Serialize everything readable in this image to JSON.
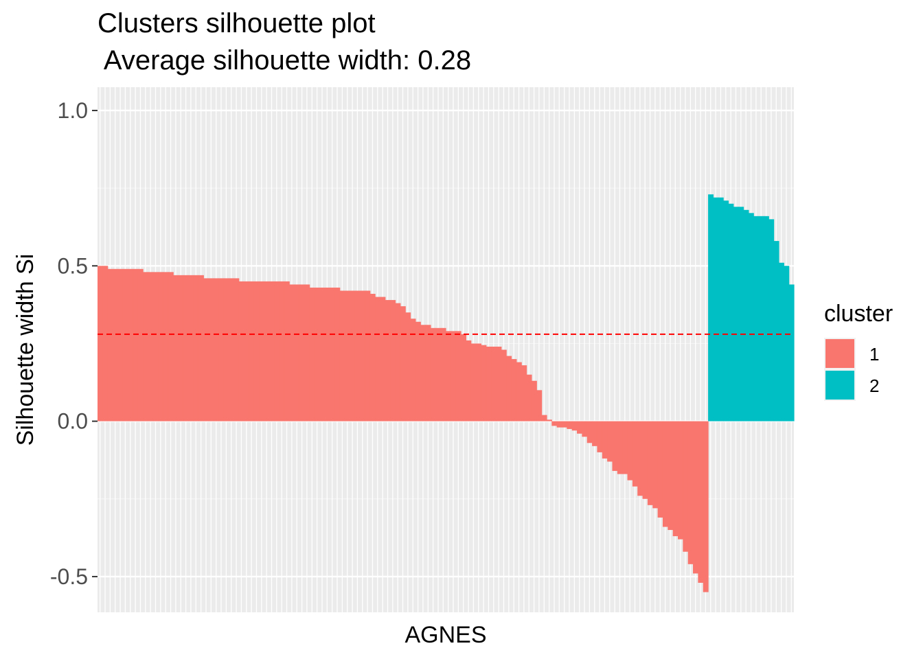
{
  "chart_data": {
    "type": "bar",
    "title": "Clusters silhouette plot",
    "subtitle": " Average silhouette width: 0.28",
    "xlabel": "AGNES",
    "ylabel": "Silhouette width Si",
    "ylim": [
      -0.615,
      1.075
    ],
    "yticks": [
      -0.5,
      0.0,
      0.5,
      1.0
    ],
    "ytick_labels": [
      "-0.5",
      "0.0",
      "0.5",
      "1.0"
    ],
    "average_line": 0.28,
    "average_line_color": "#ff0000",
    "legend": {
      "title": "cluster",
      "position": "right",
      "entries": [
        {
          "label": "1",
          "color": "#F8766D"
        },
        {
          "label": "2",
          "color": "#00BFC4"
        }
      ]
    },
    "grid": true,
    "series": [
      {
        "name": "1",
        "color": "#F8766D",
        "values": [
          0.5,
          0.5,
          0.49,
          0.49,
          0.49,
          0.49,
          0.49,
          0.49,
          0.49,
          0.48,
          0.48,
          0.48,
          0.48,
          0.48,
          0.48,
          0.47,
          0.47,
          0.47,
          0.47,
          0.47,
          0.47,
          0.46,
          0.46,
          0.46,
          0.46,
          0.46,
          0.46,
          0.46,
          0.45,
          0.45,
          0.45,
          0.45,
          0.45,
          0.45,
          0.45,
          0.45,
          0.45,
          0.45,
          0.44,
          0.44,
          0.44,
          0.44,
          0.43,
          0.43,
          0.43,
          0.43,
          0.43,
          0.43,
          0.42,
          0.42,
          0.42,
          0.42,
          0.42,
          0.42,
          0.41,
          0.4,
          0.4,
          0.39,
          0.39,
          0.38,
          0.37,
          0.35,
          0.33,
          0.32,
          0.31,
          0.31,
          0.3,
          0.3,
          0.3,
          0.29,
          0.29,
          0.29,
          0.28,
          0.26,
          0.25,
          0.25,
          0.245,
          0.24,
          0.24,
          0.24,
          0.23,
          0.21,
          0.2,
          0.19,
          0.18,
          0.15,
          0.13,
          0.1,
          0.02,
          0.005,
          -0.015,
          -0.02,
          -0.02,
          -0.025,
          -0.03,
          -0.04,
          -0.05,
          -0.07,
          -0.08,
          -0.1,
          -0.12,
          -0.13,
          -0.16,
          -0.17,
          -0.17,
          -0.19,
          -0.21,
          -0.24,
          -0.25,
          -0.27,
          -0.28,
          -0.31,
          -0.34,
          -0.35,
          -0.37,
          -0.38,
          -0.42,
          -0.46,
          -0.49,
          -0.52,
          -0.55
        ]
      },
      {
        "name": "2",
        "color": "#00BFC4",
        "values": [
          0.73,
          0.72,
          0.72,
          0.71,
          0.7,
          0.69,
          0.69,
          0.68,
          0.67,
          0.66,
          0.66,
          0.66,
          0.65,
          0.58,
          0.51,
          0.5,
          0.44
        ]
      }
    ]
  }
}
